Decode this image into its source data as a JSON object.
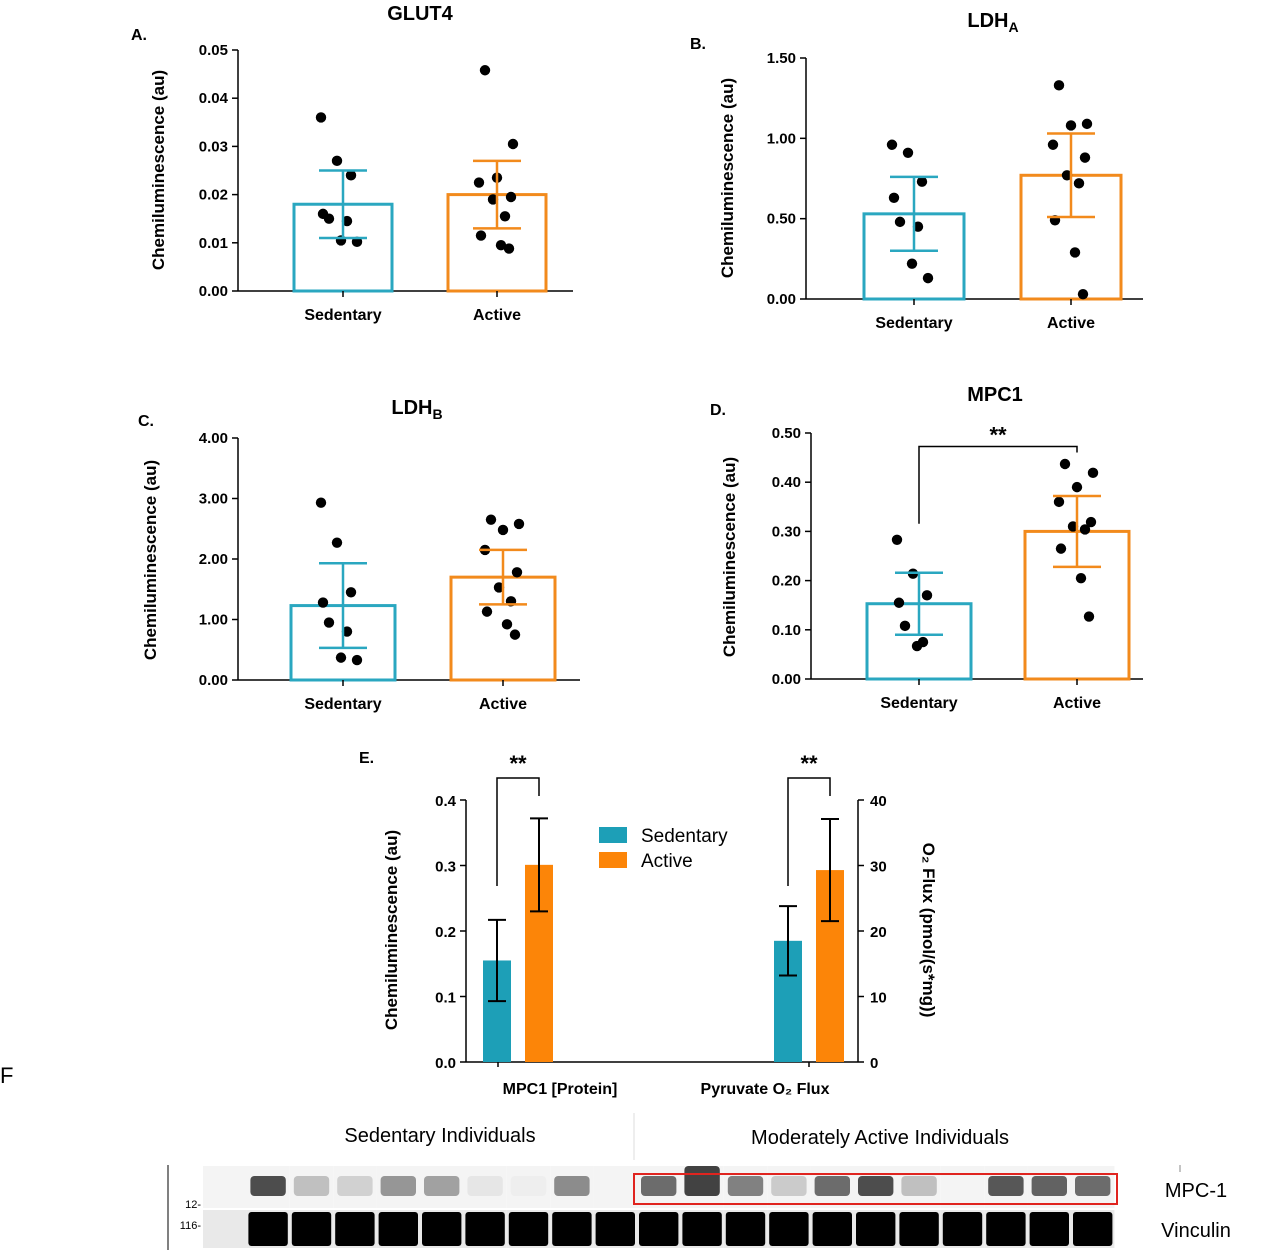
{
  "colors": {
    "sedentary": "#2aa7c0",
    "active": "#f28a1c",
    "dot": "#000000",
    "e_sedentary": "#1d9fb7",
    "e_active": "#fc8508",
    "blot_box": "#e0241f"
  },
  "chart_data": [
    {
      "id": "A",
      "letter": "A.",
      "type": "bar",
      "title": "GLUT4",
      "ylabel": "Chemiluminescence (au)",
      "xlabel": "",
      "ylim": [
        0,
        0.05
      ],
      "yticks": [
        "0.00",
        "0.01",
        "0.02",
        "0.03",
        "0.04",
        "0.05"
      ],
      "categories": [
        "Sedentary",
        "Active"
      ],
      "values": [
        0.018,
        0.02
      ],
      "errors": [
        0.007,
        0.007
      ],
      "points": [
        [
          0.036,
          0.027,
          0.024,
          0.016,
          0.015,
          0.0145,
          0.0105,
          0.0102
        ],
        [
          0.0458,
          0.0305,
          0.0235,
          0.0225,
          0.0195,
          0.019,
          0.0155,
          0.0115,
          0.0095,
          0.0088
        ]
      ],
      "significance": ""
    },
    {
      "id": "B",
      "letter": "B.",
      "type": "bar",
      "title": "LDH",
      "title_sub": "A",
      "ylabel": "Chemiluminescence (au)",
      "xlabel": "",
      "ylim": [
        0,
        1.5
      ],
      "yticks": [
        "0.00",
        "0.50",
        "1.00",
        "1.50"
      ],
      "categories": [
        "Sedentary",
        "Active"
      ],
      "values": [
        0.53,
        0.77
      ],
      "errors": [
        0.23,
        0.26
      ],
      "points": [
        [
          0.96,
          0.91,
          0.73,
          0.63,
          0.48,
          0.45,
          0.22,
          0.13
        ],
        [
          1.33,
          1.09,
          1.08,
          0.96,
          0.88,
          0.77,
          0.72,
          0.49,
          0.29,
          0.03
        ]
      ],
      "significance": ""
    },
    {
      "id": "C",
      "letter": "C.",
      "type": "bar",
      "title": "LDH",
      "title_sub": "B",
      "ylabel": "Chemiluminescence (au)",
      "xlabel": "",
      "ylim": [
        0,
        4.0
      ],
      "yticks": [
        "0.00",
        "1.00",
        "2.00",
        "3.00",
        "4.00"
      ],
      "categories": [
        "Sedentary",
        "Active"
      ],
      "values": [
        1.23,
        1.7
      ],
      "errors": [
        0.7,
        0.45
      ],
      "points": [
        [
          2.93,
          2.27,
          1.45,
          1.28,
          0.95,
          0.8,
          0.37,
          0.33
        ],
        [
          2.65,
          2.58,
          2.48,
          2.15,
          1.78,
          1.53,
          1.3,
          1.13,
          0.92,
          0.75
        ]
      ],
      "significance": ""
    },
    {
      "id": "D",
      "letter": "D.",
      "type": "bar",
      "title": "MPC1",
      "ylabel": "Chemiluminescence (au)",
      "xlabel": "",
      "ylim": [
        0,
        0.5
      ],
      "yticks": [
        "0.00",
        "0.10",
        "0.20",
        "0.30",
        "0.40",
        "0.50"
      ],
      "categories": [
        "Sedentary",
        "Active"
      ],
      "values": [
        0.153,
        0.3
      ],
      "errors": [
        0.063,
        0.072
      ],
      "points": [
        [
          0.283,
          0.214,
          0.17,
          0.155,
          0.108,
          0.075,
          0.067
        ],
        [
          0.437,
          0.419,
          0.39,
          0.36,
          0.319,
          0.31,
          0.304,
          0.265,
          0.205,
          0.127
        ]
      ],
      "significance": "**"
    }
  ],
  "panel_e": {
    "letter": "E.",
    "type": "bar",
    "ylabel_left": "Chemiluminescence (au)",
    "ylabel_right": "O₂ Flux (pmol/(s*mg))",
    "yticks_left": [
      "0.0",
      "0.1",
      "0.2",
      "0.3",
      "0.4"
    ],
    "yticks_right": [
      "0",
      "10",
      "20",
      "30",
      "40"
    ],
    "ylim_left": [
      0,
      0.4
    ],
    "ylim_right": [
      0,
      40
    ],
    "categories": [
      "MPC1 [Protein]",
      "Pyruvate O₂ Flux"
    ],
    "series": [
      {
        "name": "Sedentary",
        "values": [
          0.155,
          18.5
        ],
        "errors": [
          0.062,
          5.3
        ]
      },
      {
        "name": "Active",
        "values": [
          0.301,
          29.3
        ],
        "errors": [
          0.071,
          7.8
        ]
      }
    ],
    "significance": [
      "**",
      "**"
    ],
    "legend": [
      "Sedentary",
      "Active"
    ],
    "legend_position": "top-center"
  },
  "panel_f": {
    "letter": "F",
    "groups": [
      "Sedentary Individuals",
      "Moderately Active Individuals"
    ],
    "rows": [
      "MPC-1",
      "Vinculin"
    ],
    "markers": [
      "12-",
      "116-"
    ],
    "mpc1_intensity": [
      0.0,
      0.85,
      0.3,
      0.22,
      0.5,
      0.45,
      0.12,
      0.08,
      0.55,
      0.0,
      0.7,
      0.9,
      0.6,
      0.25,
      0.7,
      0.85,
      0.3,
      0.0,
      0.8,
      0.75,
      0.7
    ],
    "vinculin_intensity": [
      0.05,
      1.0,
      1.0,
      1.0,
      1.0,
      1.0,
      1.0,
      1.0,
      1.0,
      1.0,
      1.0,
      1.0,
      1.0,
      1.0,
      1.0,
      1.0,
      1.0,
      1.0,
      1.0,
      1.0,
      1.0
    ]
  }
}
